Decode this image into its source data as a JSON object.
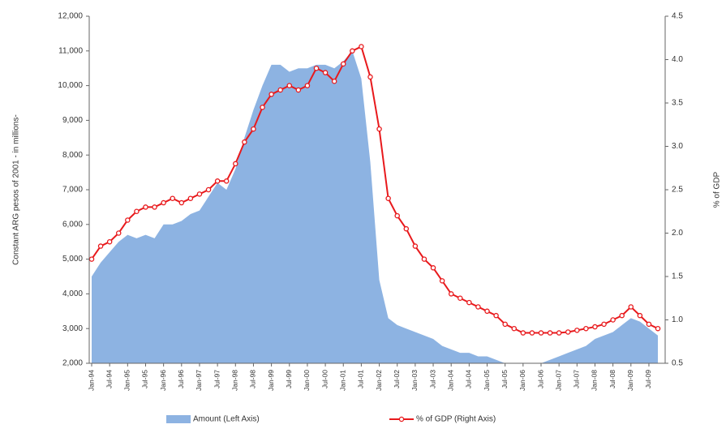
{
  "chart_data": {
    "type": "area-line",
    "y_label": "Constant ARG pesos of 2001 - in millions-",
    "y2_label": "% of GDP",
    "categories": [
      "Jan-94",
      null,
      "Jul-94",
      null,
      "Jan-95",
      null,
      "Jul-95",
      null,
      "Jan-96",
      null,
      "Jul-96",
      null,
      "Jan-97",
      null,
      "Jul-97",
      null,
      "Jan-98",
      null,
      "Jul-98",
      null,
      "Jan-99",
      null,
      "Jul-99",
      null,
      "Jan-00",
      null,
      "Jul-00",
      null,
      "Jan-01",
      null,
      "Jul-01",
      null,
      "Jan-02",
      null,
      "Jul-02",
      null,
      "Jan-03",
      null,
      "Jul-03",
      null,
      "Jan-04",
      null,
      "Jul-04",
      null,
      "Jan-05",
      null,
      "Jul-05",
      null,
      "Jan-06",
      null,
      "Jul-06",
      null,
      "Jan-07",
      null,
      "Jul-07",
      null,
      "Jan-08",
      null,
      "Jul-08",
      null,
      "Jan-09",
      null,
      "Jul-09",
      null
    ],
    "series": [
      {
        "name": "Amount (Left Axis)",
        "type": "area",
        "color": "#8db3e2",
        "values": [
          4500,
          4900,
          5200,
          5500,
          5700,
          5600,
          5700,
          5600,
          6000,
          6000,
          6100,
          6300,
          6400,
          6800,
          7200,
          7000,
          7600,
          8500,
          9300,
          10000,
          10600,
          10600,
          10400,
          10500,
          10500,
          10600,
          10600,
          10500,
          10700,
          11000,
          10200,
          7800,
          4400,
          3300,
          3100,
          3000,
          2900,
          2800,
          2700,
          2500,
          2400,
          2300,
          2300,
          2200,
          2200,
          2100,
          2000,
          2000,
          2000,
          2000,
          2000,
          2100,
          2200,
          2300,
          2400,
          2500,
          2700,
          2800,
          2900,
          3100,
          3300,
          3200,
          3000,
          2800
        ]
      },
      {
        "name": "% of GDP (Right Axis)",
        "type": "line",
        "axis": "y2",
        "color": "#e8191c",
        "values": [
          1.7,
          1.85,
          1.9,
          2.0,
          2.15,
          2.25,
          2.3,
          2.3,
          2.35,
          2.4,
          2.35,
          2.4,
          2.45,
          2.5,
          2.6,
          2.6,
          2.8,
          3.05,
          3.2,
          3.45,
          3.6,
          3.65,
          3.7,
          3.65,
          3.7,
          3.9,
          3.85,
          3.75,
          3.95,
          4.1,
          4.15,
          3.8,
          3.2,
          2.4,
          2.2,
          2.05,
          1.85,
          1.7,
          1.6,
          1.45,
          1.3,
          1.25,
          1.2,
          1.15,
          1.1,
          1.05,
          0.95,
          0.9,
          0.85,
          0.85,
          0.85,
          0.85,
          0.85,
          0.86,
          0.88,
          0.9,
          0.92,
          0.95,
          1.0,
          1.05,
          1.15,
          1.05,
          0.95,
          0.9
        ]
      }
    ],
    "ylim": [
      2000,
      12000
    ],
    "yticks": [
      {
        "value": 2000,
        "label": "2,000"
      },
      {
        "value": 3000,
        "label": "3,000"
      },
      {
        "value": 4000,
        "label": "4,000"
      },
      {
        "value": 5000,
        "label": "5,000"
      },
      {
        "value": 6000,
        "label": "6,000"
      },
      {
        "value": 7000,
        "label": "7,000"
      },
      {
        "value": 8000,
        "label": "8,000"
      },
      {
        "value": 9000,
        "label": "9,000"
      },
      {
        "value": 10000,
        "label": "10,000"
      },
      {
        "value": 11000,
        "label": "11,000"
      },
      {
        "value": 12000,
        "label": "12,000"
      }
    ],
    "y2lim": [
      0.5,
      4.5
    ],
    "y2ticks": [
      0.5,
      {
        "value": 1,
        "label": "1.0"
      },
      1.5,
      {
        "value": 2,
        "label": "2.0"
      },
      2.5,
      {
        "value": 3,
        "label": "3.0"
      },
      3.5,
      {
        "value": 4,
        "label": "4.0"
      },
      4.5
    ],
    "grid": false,
    "legend": "bottom"
  }
}
